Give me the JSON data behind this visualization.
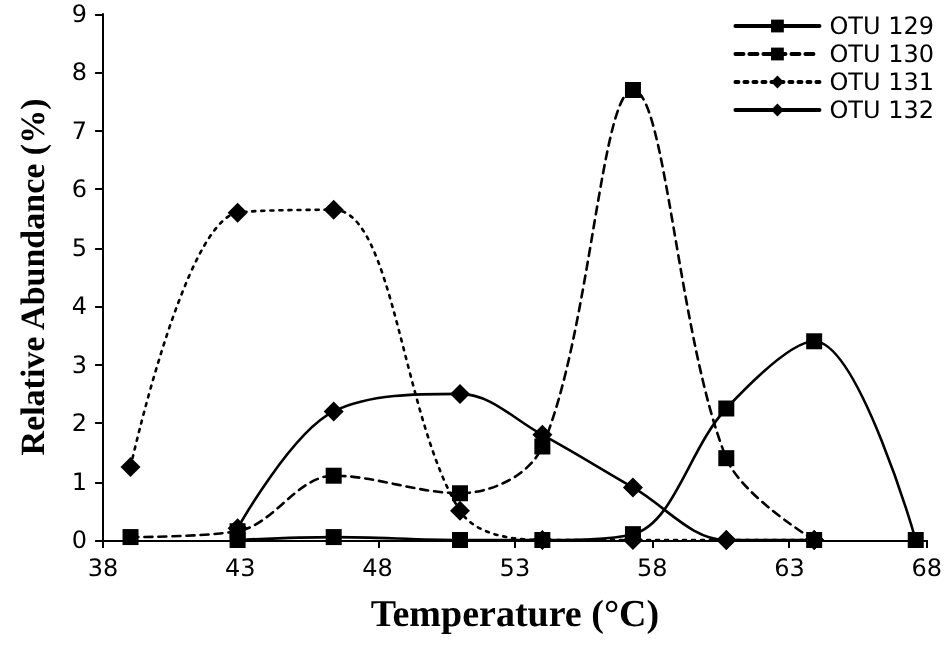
{
  "chart_data": {
    "type": "line",
    "xlabel": "Temperature (°C)",
    "ylabel": "Relative Abundance (%)",
    "xlim": [
      38,
      68
    ],
    "xticks": [
      38,
      43,
      48,
      53,
      58,
      63,
      68
    ],
    "ylim": [
      0,
      9
    ],
    "yticks": [
      0,
      1,
      2,
      3,
      4,
      5,
      6,
      7,
      8,
      9
    ],
    "grid": false,
    "legend": "top right",
    "series": [
      {
        "name": "OTU 129",
        "color": "#000000",
        "marker": "square",
        "line_style": "solid",
        "x": [
          42.9,
          46.4,
          51,
          54,
          57.3,
          60.7,
          63.9,
          67.6
        ],
        "values": [
          0,
          0.05,
          0,
          0,
          0.1,
          2.25,
          3.4,
          0
        ]
      },
      {
        "name": "OTU 130",
        "color": "#000000",
        "marker": "square",
        "line_style": "dashed",
        "x": [
          39,
          42.9,
          46.4,
          51,
          54,
          57.3,
          60.7,
          63.9
        ],
        "values": [
          0.05,
          0.15,
          1.1,
          0.8,
          1.6,
          7.7,
          1.4,
          0
        ]
      },
      {
        "name": "OTU 131",
        "color": "#000000",
        "marker": "diamond",
        "line_style": "dotted",
        "x": [
          39,
          42.9,
          46.4,
          51,
          54,
          57.3,
          60.7,
          63.9
        ],
        "values": [
          1.25,
          5.6,
          5.65,
          0.5,
          0,
          0,
          0,
          0
        ]
      },
      {
        "name": "OTU 132",
        "color": "#000000",
        "marker": "diamond",
        "line_style": "solid",
        "x": [
          42.9,
          46.4,
          51,
          54,
          57.3,
          60.7,
          63.9
        ],
        "values": [
          0.2,
          2.2,
          2.5,
          1.8,
          0.9,
          0,
          0
        ]
      }
    ]
  }
}
